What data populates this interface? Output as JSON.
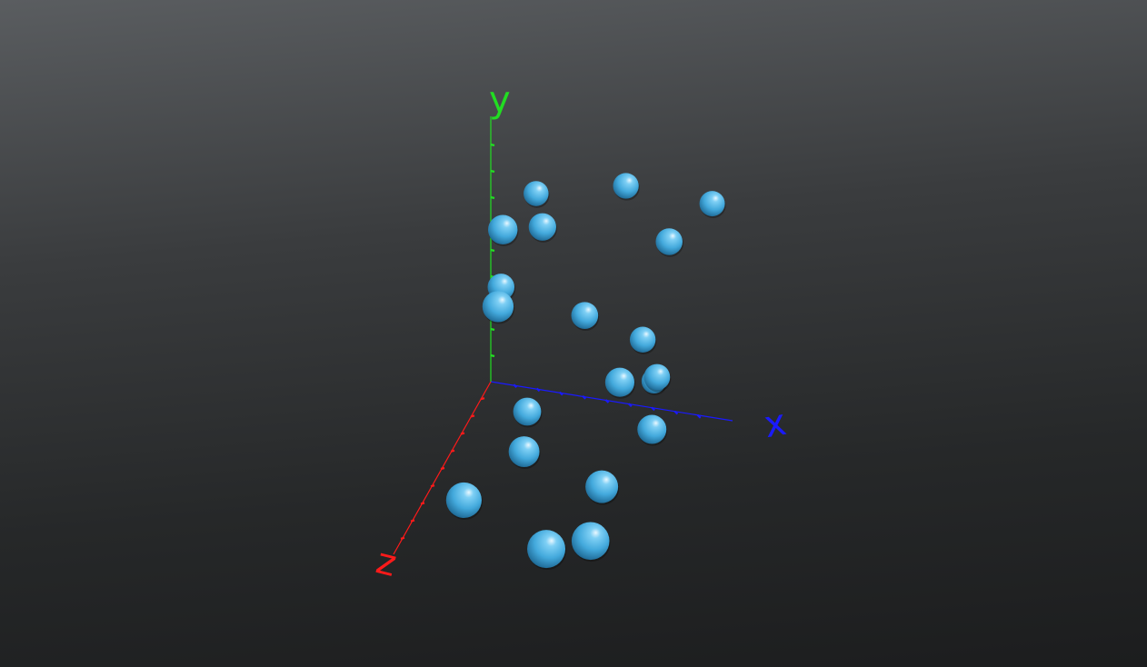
{
  "chart_data": {
    "type": "scatter",
    "dimensions": 3,
    "title": "",
    "axes": {
      "x": {
        "label": "x",
        "color": "#1a1aff",
        "range": [
          0,
          10
        ],
        "ticks": 9
      },
      "y": {
        "label": "y",
        "color": "#22dd22",
        "range": [
          0,
          10
        ],
        "ticks": 9
      },
      "z": {
        "label": "z",
        "color": "#ff1a1a",
        "range": [
          0,
          10
        ],
        "ticks": 9
      }
    },
    "grid": false,
    "legend": "none",
    "marker": {
      "shape": "sphere",
      "color": "#4fb3e6"
    },
    "points": [
      {
        "x": 2.11,
        "y": 8.49,
        "z": 3.65
      },
      {
        "x": 3.19,
        "y": 7.77,
        "z": 2.17
      },
      {
        "x": 2.44,
        "y": 6.44,
        "z": 4.89
      },
      {
        "x": 2.13,
        "y": 7.69,
        "z": 0.37
      },
      {
        "x": 6.24,
        "y": 8.89,
        "z": 0.84
      },
      {
        "x": 8.49,
        "y": 7.66,
        "z": 1.69
      },
      {
        "x": 9.91,
        "y": 8.62,
        "z": 0.65
      },
      {
        "x": 1.18,
        "y": 4.88,
        "z": 1.69
      },
      {
        "x": 4.85,
        "y": 4.38,
        "z": 1.76
      },
      {
        "x": 7.02,
        "y": 3.24,
        "z": 0.95
      },
      {
        "x": 7.11,
        "y": 3.29,
        "z": 3.45
      },
      {
        "x": 7.75,
        "y": 2.09,
        "z": 1.2
      },
      {
        "x": 2.69,
        "y": 0.94,
        "z": 2.55
      },
      {
        "x": 3.46,
        "y": 0.91,
        "z": 4.63
      },
      {
        "x": 7.13,
        "y": 1.11,
        "z": 0.09
      },
      {
        "x": 8.45,
        "y": 1.61,
        "z": 3.32
      },
      {
        "x": 7.44,
        "y": 1.07,
        "z": 6.01
      },
      {
        "x": 2.36,
        "y": 1.22,
        "z": 8.12
      },
      {
        "x": 8.58,
        "y": 1.66,
        "z": 9.76
      },
      {
        "x": 6.76,
        "y": 1.25,
        "z": 10.0
      }
    ]
  }
}
